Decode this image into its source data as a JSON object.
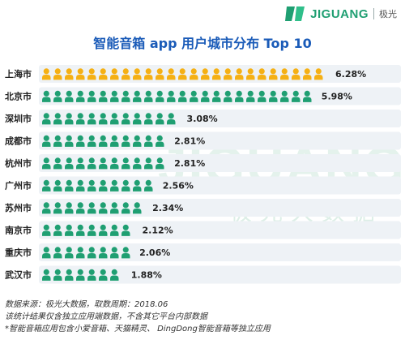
{
  "brand": {
    "name": "JIGUANG",
    "cn": "极光"
  },
  "watermark": {
    "en": "JIGUANG",
    "cn": "极光大数据"
  },
  "colors": {
    "highlight": "#f5b014",
    "base": "#1f9f72",
    "title": "#1a5bb8"
  },
  "chart_data": {
    "type": "bar",
    "title": "智能音箱 app 用户城市分布 Top 10",
    "xlabel": "",
    "ylabel": "",
    "icon": "person-icon",
    "categories": [
      "上海市",
      "北京市",
      "深圳市",
      "成都市",
      "杭州市",
      "广州市",
      "苏州市",
      "南京市",
      "重庆市",
      "武汉市"
    ],
    "values": [
      6.28,
      5.98,
      3.08,
      2.81,
      2.81,
      2.56,
      2.34,
      2.12,
      2.06,
      1.88
    ],
    "value_labels": [
      "6.28%",
      "5.98%",
      "3.08%",
      "2.81%",
      "2.81%",
      "2.56%",
      "2.34%",
      "2.12%",
      "2.06%",
      "1.88%"
    ],
    "highlight_index": 0,
    "xlim": [
      0,
      6.5
    ],
    "grid": false
  },
  "footer": {
    "line1": "数据来源：极光大数据，取数周期：2018.06",
    "line2": "该统计结果仅含独立应用端数据，不含其它平台内部数据",
    "line3": "*智能音箱应用包含小爱音箱、天猫精灵、 DingDong智能音箱等独立应用"
  }
}
